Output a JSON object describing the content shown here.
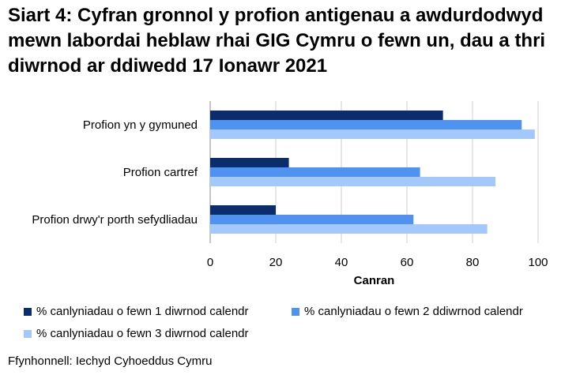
{
  "title": "Siart 4: Cyfran gronnol y profion antigenau a awdurdodwyd mewn labordai heblaw rhai GIG Cymru o fewn un, dau a thri diwrnod ar ddiwedd 17 Ionawr 2021",
  "source": "Ffynhonnell: Iechyd Cyhoeddus Cymru",
  "colors": {
    "series1": "#0b2d6b",
    "series2": "#4f92f0",
    "series3": "#a3c8fb",
    "grid": "#cfcfcf",
    "axis": "#8c8c8c"
  },
  "chart_data": {
    "type": "bar",
    "orientation": "horizontal",
    "categories": [
      "Profion yn y gymuned",
      "Profion cartref",
      "Profion drwy'r porth sefydliadau"
    ],
    "series": [
      {
        "name": "% canlyniadau o fewn 1 diwrnod calendr",
        "values": [
          71,
          24,
          20
        ]
      },
      {
        "name": "% canlyniadau o fewn 2 ddiwrnod calendr",
        "values": [
          95,
          64,
          62
        ]
      },
      {
        "name": "% canlyniadau o fewn 3 diwrnod calendr",
        "values": [
          99,
          87,
          84.5
        ]
      }
    ],
    "xlabel": "Canran",
    "xlim": [
      0,
      100
    ],
    "xticks": [
      0,
      20,
      40,
      60,
      80,
      100
    ],
    "grid": true,
    "legend_position": "bottom"
  }
}
